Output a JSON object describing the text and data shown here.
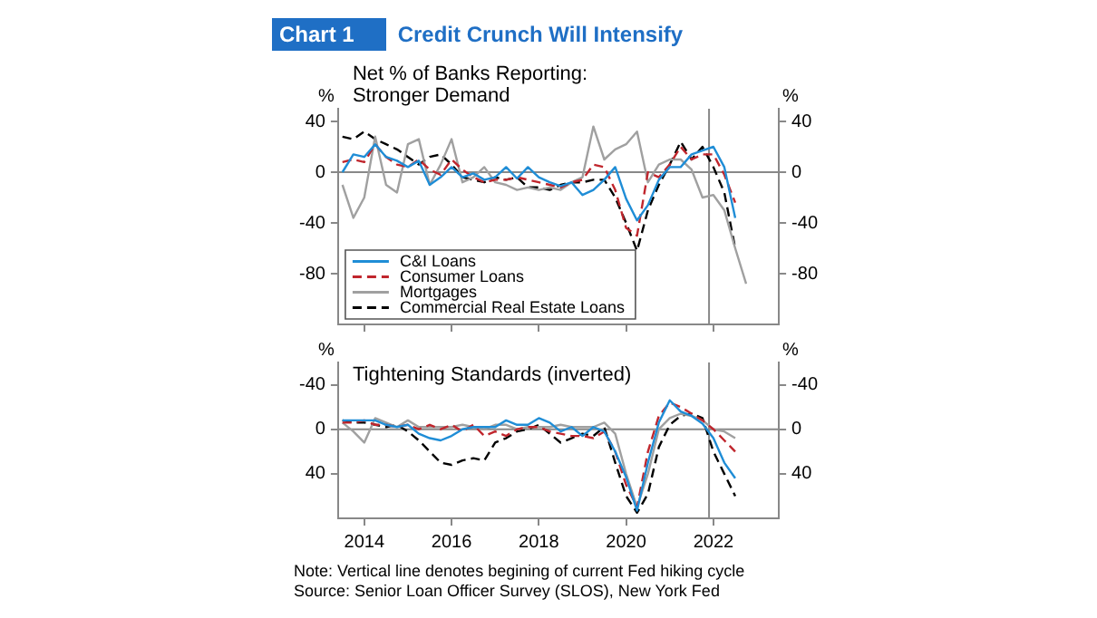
{
  "chart_data": [
    {
      "type": "line",
      "title": "Net % of Banks Reporting:\nStronger Demand",
      "annotations": [
        "Chart 1",
        "Credit Crunch Will Intensify"
      ],
      "ylabel": "%",
      "y2label": "%",
      "x": [
        2013.5,
        2013.75,
        2014,
        2014.25,
        2014.5,
        2014.75,
        2015,
        2015.25,
        2015.5,
        2015.75,
        2016,
        2016.25,
        2016.5,
        2016.75,
        2017,
        2017.25,
        2017.5,
        2017.75,
        2018,
        2018.25,
        2018.5,
        2018.75,
        2019,
        2019.25,
        2019.5,
        2019.75,
        2020,
        2020.25,
        2020.5,
        2020.75,
        2021,
        2021.25,
        2021.5,
        2021.75,
        2022,
        2022.25,
        2022.5,
        2022.75
      ],
      "series": [
        {
          "name": "C&I Loans",
          "color": "#1f8dd6",
          "line_style": "solid",
          "values": [
            0,
            14,
            12,
            22,
            12,
            9,
            4,
            9,
            -10,
            -4,
            4,
            -4,
            -1,
            -6,
            -4,
            4,
            -5,
            4,
            -4,
            -8,
            -11,
            -8,
            -18,
            -14,
            -6,
            4,
            -21,
            -38,
            -26,
            -6,
            4,
            4,
            14,
            17,
            20,
            4,
            -36,
            null
          ]
        },
        {
          "name": "Consumer Loans",
          "color": "#c0262d",
          "line_style": "dashed",
          "values": [
            8,
            10,
            8,
            22,
            12,
            6,
            4,
            10,
            2,
            -2,
            10,
            2,
            -4,
            -8,
            -6,
            -6,
            -4,
            -6,
            -8,
            -10,
            -12,
            -8,
            -6,
            6,
            4,
            -14,
            -44,
            -50,
            0,
            -4,
            6,
            20,
            10,
            14,
            14,
            -2,
            -24,
            null
          ]
        },
        {
          "name": "Mortgages",
          "color": "#a0a0a0",
          "line_style": "solid",
          "values": [
            -10,
            -36,
            -20,
            28,
            -10,
            -16,
            22,
            26,
            -10,
            6,
            26,
            -8,
            -4,
            4,
            -8,
            -10,
            -14,
            -12,
            -14,
            -12,
            -14,
            -8,
            -4,
            36,
            10,
            18,
            22,
            32,
            -8,
            6,
            10,
            10,
            2,
            -20,
            -18,
            -30,
            -60,
            -88
          ]
        },
        {
          "name": "Commercial Real Estate Loans",
          "color": "#000000",
          "line_style": "dashed",
          "values": [
            28,
            26,
            32,
            26,
            22,
            18,
            12,
            6,
            12,
            14,
            6,
            -4,
            -6,
            -8,
            -4,
            -6,
            -4,
            -12,
            -12,
            -14,
            -10,
            -8,
            -8,
            -6,
            -6,
            -20,
            -40,
            -62,
            -30,
            -10,
            6,
            24,
            10,
            20,
            4,
            -16,
            -60,
            null
          ]
        }
      ],
      "xlim": [
        2013.4,
        2023.5
      ],
      "xticks": [
        2014,
        2016,
        2018,
        2020,
        2022
      ],
      "ylim": [
        -120,
        50
      ],
      "yticks": [
        -80,
        -40,
        0,
        40
      ],
      "y2lim": [
        -120,
        50
      ],
      "y2ticks": [
        -80,
        -40,
        0,
        40
      ],
      "ref_lines": [
        {
          "axis": "y",
          "value": 0,
          "color": "#888888"
        },
        {
          "axis": "x",
          "value": 2021.9,
          "color": "#888888"
        }
      ],
      "tick_labels": "y",
      "legend": "bottom left",
      "grid": false
    },
    {
      "type": "line",
      "title": "Tightening Standards (inverted)",
      "annotations": [
        "Note: Vertical line denotes begining of current Fed hiking cycle",
        "Source: Senior Loan Officer Survey (SLOS), New York Fed"
      ],
      "ylabel": "%",
      "y2label": "%",
      "x": [
        2013.5,
        2013.75,
        2014,
        2014.25,
        2014.5,
        2014.75,
        2015,
        2015.25,
        2015.5,
        2015.75,
        2016,
        2016.25,
        2016.5,
        2016.75,
        2017,
        2017.25,
        2017.5,
        2017.75,
        2018,
        2018.25,
        2018.5,
        2018.75,
        2019,
        2019.25,
        2019.5,
        2019.75,
        2020,
        2020.25,
        2020.5,
        2020.75,
        2021,
        2021.25,
        2021.5,
        2021.75,
        2022,
        2022.25,
        2022.5
      ],
      "series": [
        {
          "color": "#1f8dd6",
          "line_style": "solid",
          "values": [
            -8,
            -8,
            -8,
            -8,
            -4,
            -2,
            -4,
            4,
            8,
            10,
            6,
            0,
            -2,
            -2,
            -2,
            -8,
            -4,
            -4,
            -10,
            -6,
            2,
            -2,
            6,
            -2,
            2,
            20,
            43,
            73,
            30,
            -6,
            -26,
            -16,
            -12,
            -5,
            8,
            30,
            44
          ]
        },
        {
          "color": "#c0262d",
          "line_style": "dashed",
          "values": [
            -6,
            -6,
            -8,
            -4,
            -4,
            -2,
            -4,
            0,
            -4,
            0,
            -4,
            2,
            -4,
            6,
            2,
            6,
            0,
            -2,
            -2,
            2,
            4,
            6,
            6,
            8,
            2,
            20,
            50,
            70,
            20,
            -12,
            -24,
            -20,
            -14,
            -8,
            0,
            10,
            20
          ]
        },
        {
          "color": "#a0a0a0",
          "line_style": "solid",
          "values": [
            -6,
            2,
            12,
            -10,
            -6,
            -2,
            -8,
            -2,
            -2,
            -2,
            -2,
            -4,
            -2,
            0,
            -4,
            -4,
            0,
            -2,
            -2,
            -2,
            -4,
            -2,
            -2,
            -2,
            -6,
            4,
            40,
            70,
            40,
            0,
            -10,
            -14,
            -12,
            -8,
            0,
            2,
            8
          ]
        },
        {
          "color": "#000000",
          "line_style": "dashed",
          "values": [
            -8,
            -6,
            -6,
            -4,
            -2,
            -4,
            2,
            10,
            20,
            30,
            32,
            28,
            26,
            28,
            12,
            8,
            2,
            0,
            -4,
            4,
            12,
            8,
            4,
            6,
            -2,
            30,
            60,
            75,
            58,
            16,
            -4,
            -12,
            -14,
            -10,
            20,
            40,
            60
          ]
        }
      ],
      "xlim": [
        2013.4,
        2023.5
      ],
      "xticks": [
        2014,
        2016,
        2018,
        2020,
        2022
      ],
      "ylim": [
        80,
        -60
      ],
      "yticks": [
        -40,
        0,
        40
      ],
      "y2lim": [
        80,
        -60
      ],
      "y2ticks": [
        -40,
        0,
        40
      ],
      "ref_lines": [
        {
          "axis": "y",
          "value": 0,
          "color": "#888888"
        },
        {
          "axis": "x",
          "value": 2021.9,
          "color": "#888888"
        }
      ],
      "grid": false
    }
  ]
}
